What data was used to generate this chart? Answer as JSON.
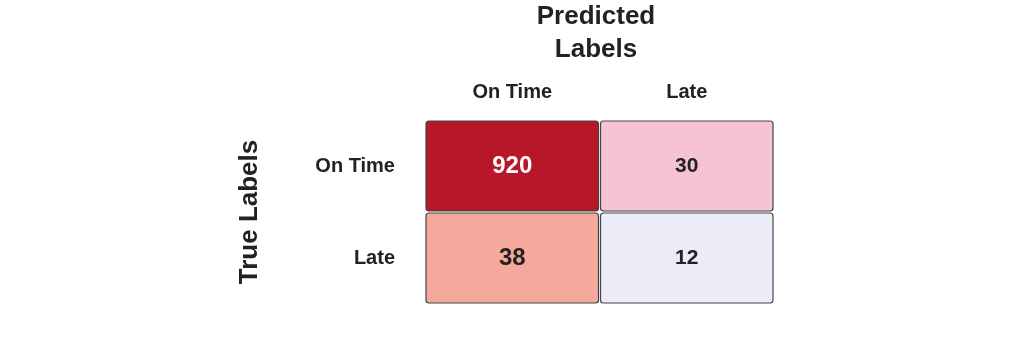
{
  "chart_data": {
    "type": "heatmap",
    "xlabel": "Predicted Labels",
    "ylabel": "True Labels",
    "categories": [
      "On Time",
      "Late"
    ],
    "y_categories": [
      "On Time",
      "Late"
    ],
    "cells": [
      [
        920,
        30
      ],
      [
        38,
        12
      ]
    ],
    "colors": [
      [
        "#b71729",
        "#f5c3d3"
      ],
      [
        "#f4a99c",
        "#ececf9"
      ]
    ],
    "data_labels": true
  }
}
